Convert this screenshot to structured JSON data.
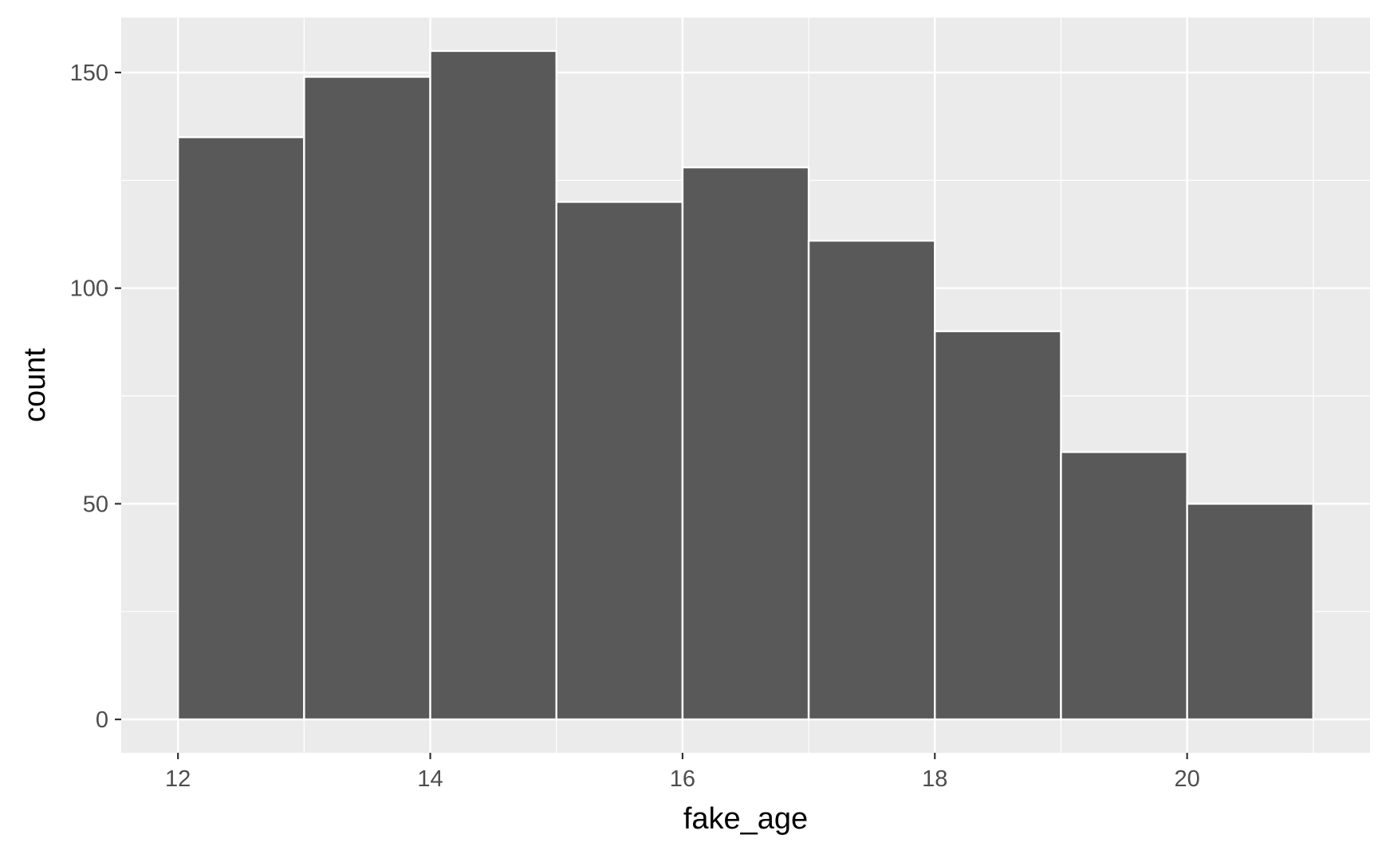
{
  "chart_data": {
    "type": "bar",
    "bins": [
      {
        "x0": 12,
        "x1": 13,
        "count": 135
      },
      {
        "x0": 13,
        "x1": 14,
        "count": 149
      },
      {
        "x0": 14,
        "x1": 15,
        "count": 155
      },
      {
        "x0": 15,
        "x1": 16,
        "count": 120
      },
      {
        "x0": 16,
        "x1": 17,
        "count": 128
      },
      {
        "x0": 17,
        "x1": 18,
        "count": 111
      },
      {
        "x0": 18,
        "x1": 19,
        "count": 90
      },
      {
        "x0": 19,
        "x1": 20,
        "count": 62
      },
      {
        "x0": 20,
        "x1": 21,
        "count": 50
      }
    ],
    "xlabel": "fake_age",
    "ylabel": "count",
    "xticks": [
      12,
      14,
      16,
      18,
      20
    ],
    "xticks_labels": [
      "12",
      "14",
      "16",
      "18",
      "20"
    ],
    "yticks": [
      0,
      50,
      100,
      150
    ],
    "yticks_labels": [
      "0",
      "50",
      "100",
      "150"
    ],
    "xlim": [
      11.55,
      21.45
    ],
    "ylim": [
      -7.75,
      162.75
    ],
    "grid": true,
    "colors": {
      "panel_background": "#ebebeb",
      "grid_line": "#ffffff",
      "bar_fill": "#595959",
      "bar_outline": "#ffffff",
      "tick_label": "#4d4d4d",
      "axis_title": "#000000"
    }
  }
}
